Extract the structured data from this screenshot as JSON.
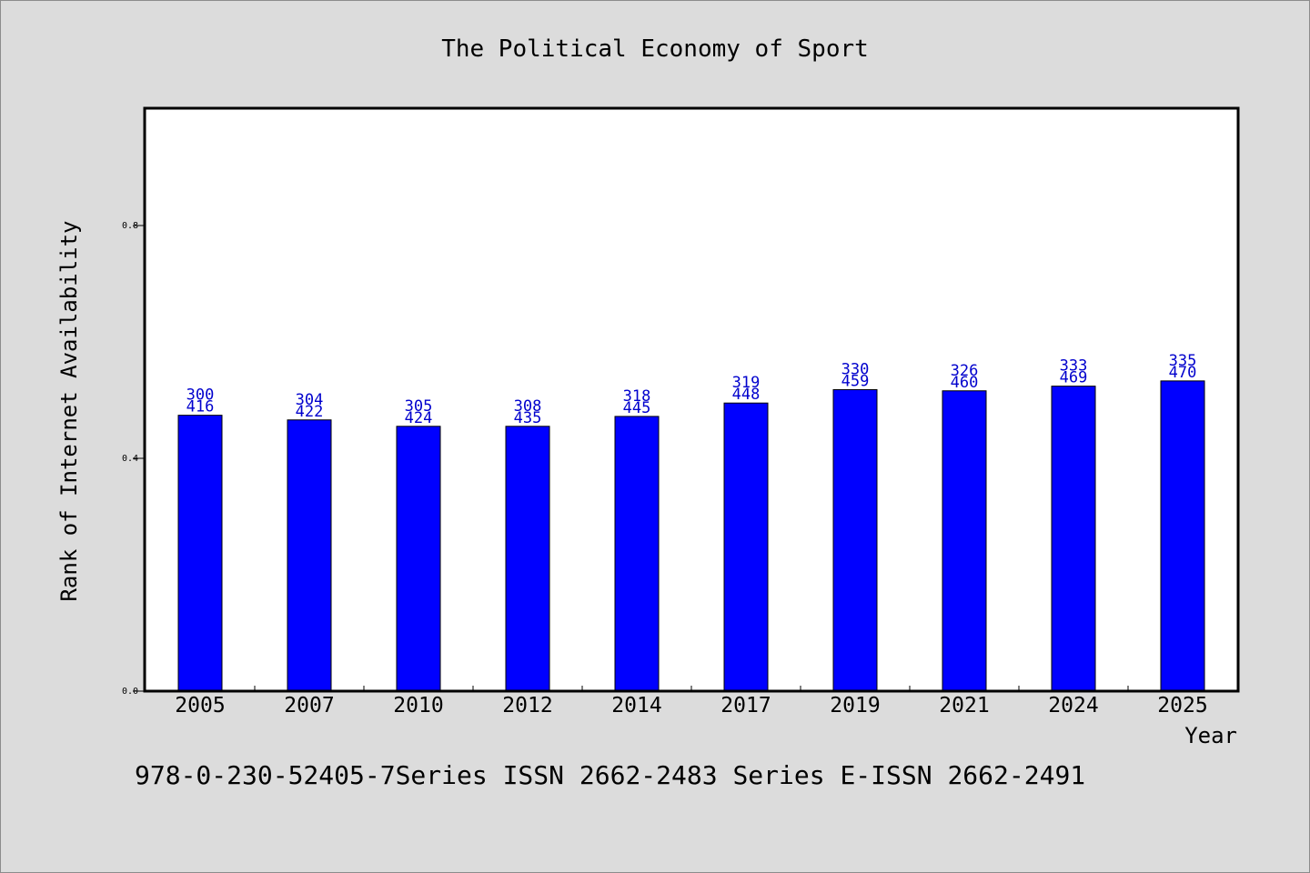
{
  "chart_data": {
    "type": "bar",
    "title": "The Political Economy of Sport",
    "xlabel": "Year",
    "ylabel": "Rank of Internet Availability",
    "categories": [
      "2005",
      "2007",
      "2010",
      "2012",
      "2014",
      "2017",
      "2019",
      "2021",
      "2024",
      "2025"
    ],
    "values": [
      0.474,
      0.466,
      0.455,
      0.455,
      0.472,
      0.495,
      0.518,
      0.516,
      0.524,
      0.533
    ],
    "data_labels": [
      [
        "300",
        "416"
      ],
      [
        "304",
        "422"
      ],
      [
        "305",
        "424"
      ],
      [
        "308",
        "435"
      ],
      [
        "318",
        "445"
      ],
      [
        "319",
        "448"
      ],
      [
        "330",
        "459"
      ],
      [
        "326",
        "460"
      ],
      [
        "333",
        "469"
      ],
      [
        "335",
        "470"
      ]
    ],
    "yticks": [
      "0.0",
      "0.4",
      "0.8"
    ],
    "ylim": [
      0,
      1.0
    ],
    "bar_color": "#0000ff",
    "label_color": "#0000cd",
    "background": "#dcdcdc",
    "plot_background": "#ffffff",
    "grid": false,
    "legend": "none"
  },
  "footer": {
    "text": "978-0-230-52405-7Series ISSN 2662-2483 Series E-ISSN 2662-2491"
  }
}
